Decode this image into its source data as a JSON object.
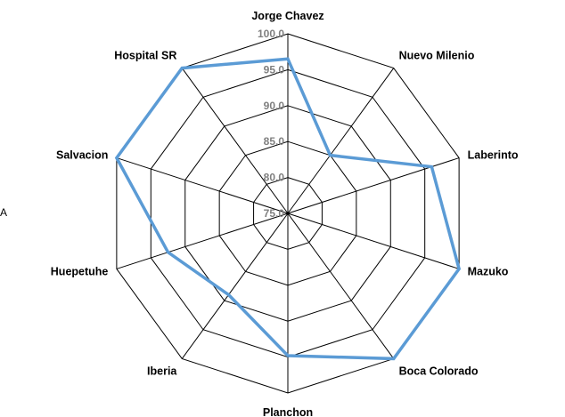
{
  "chart_data": {
    "type": "radar",
    "title": "",
    "categories": [
      "Jorge Chavez",
      "Nuevo Milenio",
      "Laberinto",
      "Mazuko",
      "Boca Colorado",
      "Planchon",
      "Iberia",
      "Huepetuhe",
      "Salvacion",
      "Hospital SR"
    ],
    "tick_values": [
      75.0,
      80.0,
      85.0,
      90.0,
      95.0,
      100.0
    ],
    "tick_labels": [
      "75.0",
      "80.0",
      "85.0",
      "90.0",
      "95.0",
      "100.0"
    ],
    "range": [
      75,
      100
    ],
    "grid": true,
    "legend": "none",
    "series": [
      {
        "values": [
          96.5,
          85.0,
          96.0,
          100.0,
          100.0,
          94.8,
          89.0,
          92.5,
          100.0,
          100.0
        ]
      }
    ],
    "colors": {
      "series": "#5b9bd5",
      "grid": "#000000",
      "tick_text": "#7f7f7f"
    },
    "stray_text": "A"
  }
}
